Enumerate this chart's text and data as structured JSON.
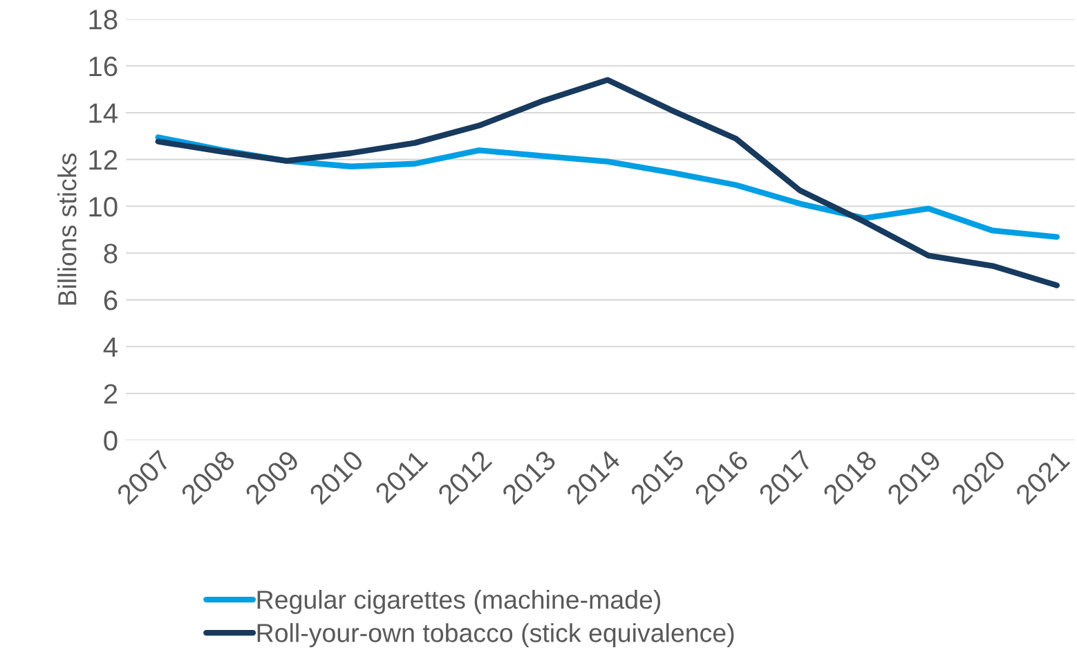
{
  "chart_data": {
    "type": "line",
    "ylabel": "Billions sticks",
    "categories": [
      "2007",
      "2008",
      "2009",
      "2010",
      "2011",
      "2012",
      "2013",
      "2014",
      "2015",
      "2016",
      "2017",
      "2018",
      "2019",
      "2020",
      "2021"
    ],
    "series": [
      {
        "name": "Regular cigarettes (machine-made)",
        "color": "#009fe3",
        "values": [
          12.95,
          12.4,
          11.94,
          11.7,
          11.82,
          12.39,
          12.15,
          11.91,
          11.44,
          10.91,
          10.11,
          9.49,
          9.9,
          8.96,
          8.69
        ]
      },
      {
        "name": "Roll-your-own tobacco (stick equivalence)",
        "color": "#173a5e",
        "values": [
          12.77,
          12.33,
          11.94,
          12.27,
          12.71,
          13.45,
          14.51,
          15.4,
          14.1,
          12.89,
          10.67,
          9.34,
          7.89,
          7.45,
          6.62
        ]
      }
    ],
    "ylim": [
      0,
      18
    ],
    "yticks": [
      0,
      2,
      4,
      6,
      8,
      10,
      12,
      14,
      16,
      18
    ],
    "grid": "y",
    "legend": "bottom",
    "marker": "none",
    "line_style": "solid"
  }
}
